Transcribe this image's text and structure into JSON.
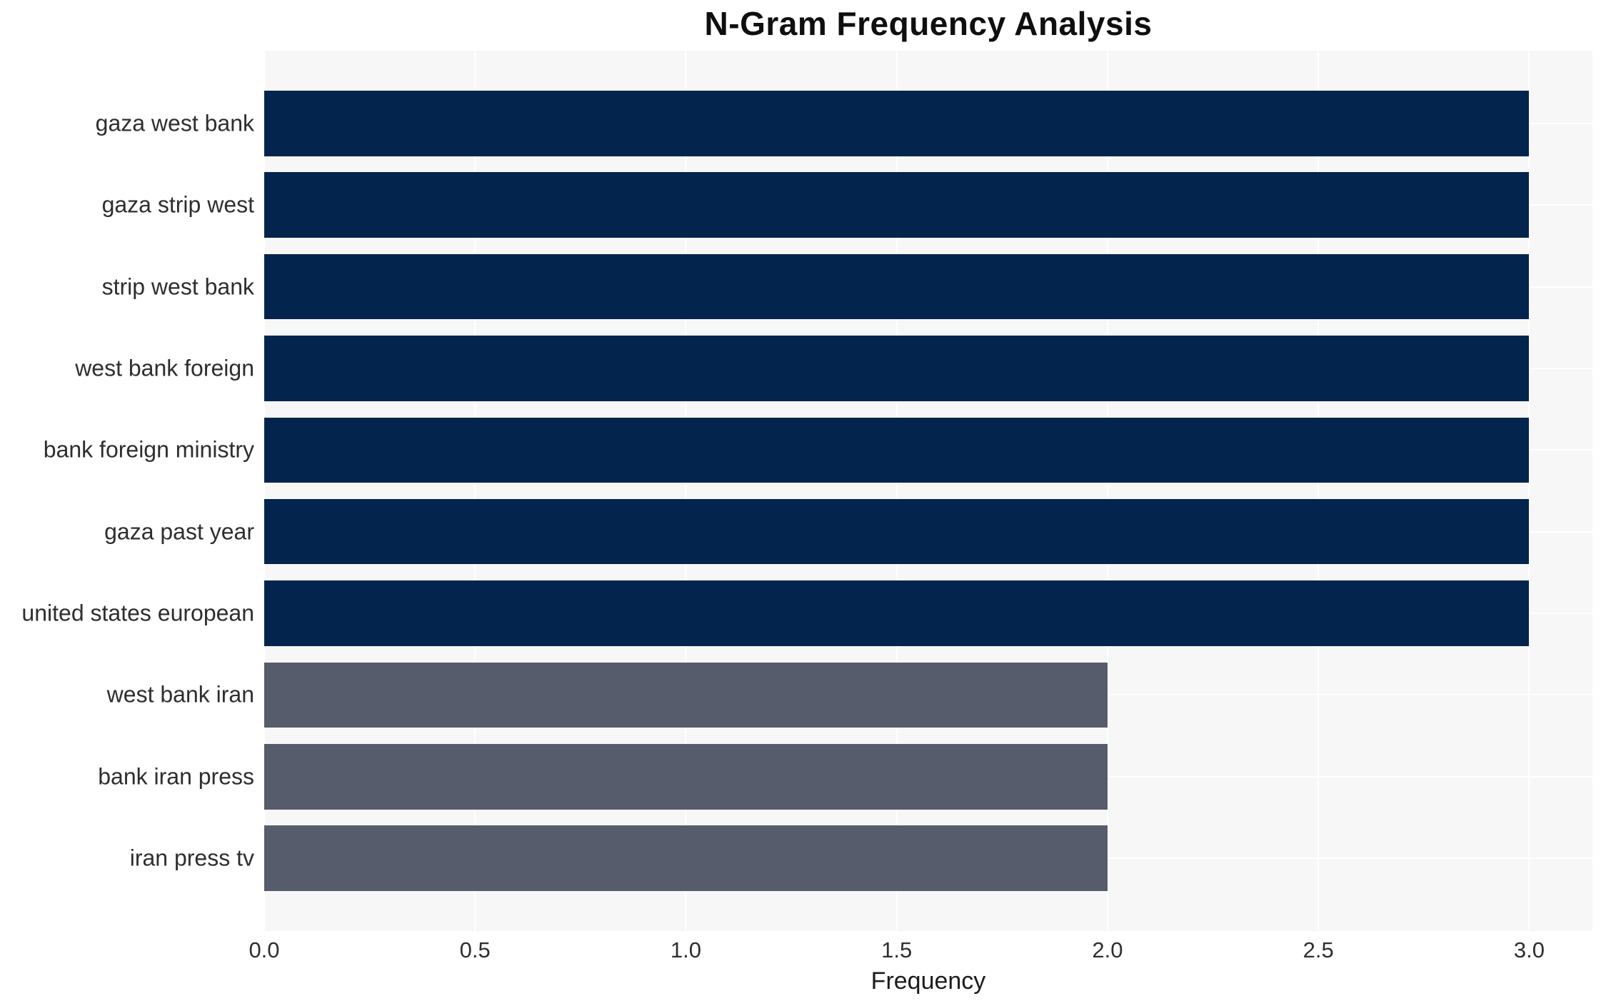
{
  "figure": {
    "background": "#ffffff",
    "text_color": "#2e2e2e"
  },
  "chart_data": {
    "type": "bar",
    "orientation": "horizontal",
    "title": "N-Gram Frequency Analysis",
    "xlabel": "Frequency",
    "ylabel": "",
    "categories": [
      "gaza west bank",
      "gaza strip west",
      "strip west bank",
      "west bank foreign",
      "bank foreign ministry",
      "gaza past year",
      "united states european",
      "west bank iran",
      "bank iran press",
      "iran press tv"
    ],
    "values": [
      3,
      3,
      3,
      3,
      3,
      3,
      3,
      2,
      2,
      2
    ],
    "bar_colors": [
      "#03244d",
      "#03244d",
      "#03244d",
      "#03244d",
      "#03244d",
      "#03244d",
      "#03244d",
      "#565c6b",
      "#565c6b",
      "#565c6b"
    ],
    "color_legend": {
      "frequency_3": "#03244d",
      "frequency_2": "#565c6b"
    },
    "xlim": [
      0,
      3.15
    ],
    "xticks": [
      0.0,
      0.5,
      1.0,
      1.5,
      2.0,
      2.5,
      3.0
    ],
    "xtick_labels": [
      "0.0",
      "0.5",
      "1.0",
      "1.5",
      "2.0",
      "2.5",
      "3.0"
    ],
    "grid": true,
    "grid_color": "#ffffff",
    "plot_background": "#f7f7f7",
    "bar_height_fraction": 0.8,
    "legend_position": "none"
  }
}
